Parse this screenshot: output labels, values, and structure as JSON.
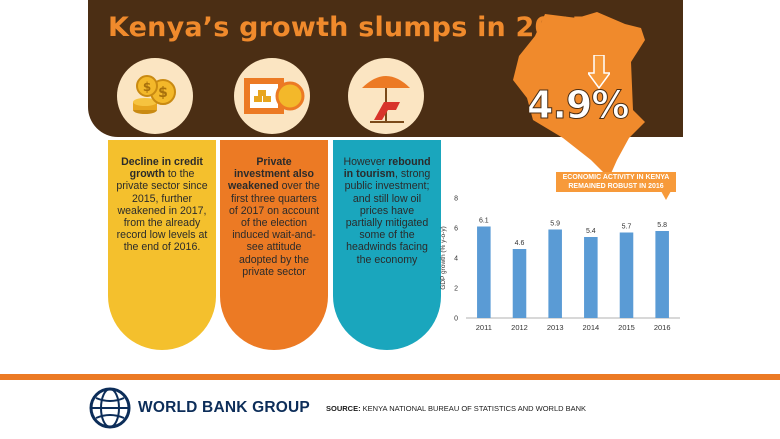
{
  "title": "Kenya’s growth slumps in 2017",
  "headline_value": "4.9%",
  "panels": [
    {
      "bold": "Decline in credit growth",
      "text": " to the private sector since 2015, further weakened in 2017, from the already record low levels at the end of 2016."
    },
    {
      "bold": "Private investment also weakened",
      "text": " over the first three quarters of 2017 on account of the election induced wait-and-see attitude adopted by the private sector"
    },
    {
      "pre": "However ",
      "bold": "rebound in tourism",
      "text": ", strong public investment; and still low oil prices have partially mitigated some of the headwinds facing the economy"
    }
  ],
  "icons": [
    "coins-icon",
    "investment-icon",
    "beach-umbrella-icon"
  ],
  "callout": "ECONOMIC ACTIVITY IN KENYA REMAINED ROBUST IN 2016",
  "chart_data": {
    "type": "bar",
    "categories": [
      "2011",
      "2012",
      "2013",
      "2014",
      "2015",
      "2016"
    ],
    "values": [
      6.1,
      4.6,
      5.9,
      5.4,
      5.7,
      5.8
    ],
    "value_labels": [
      "6.1",
      "4.6",
      "5.9",
      "5.4",
      "5.7",
      "5.8"
    ],
    "ylabel": "GDP growth (% y-o-y)",
    "ylim": [
      0,
      8
    ],
    "yticks": [
      0,
      2,
      4,
      6,
      8
    ],
    "bar_color": "#5a9bd5"
  },
  "footer": {
    "org": "WORLD BANK GROUP",
    "source_label": "SOURCE:",
    "source_text": " KENYA NATIONAL BUREAU OF STATISTICS AND WORLD BANK"
  },
  "colors": {
    "brown": "#4b2e14",
    "orange": "#ec7a24",
    "yellow": "#f4c02d",
    "teal": "#1aa6bd",
    "navy": "#0c2d59"
  }
}
